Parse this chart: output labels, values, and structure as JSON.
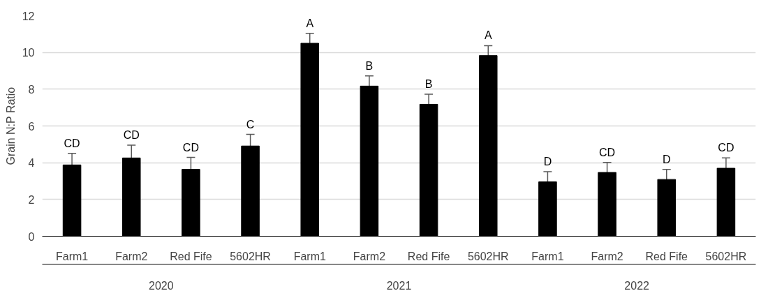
{
  "chart_data": {
    "type": "bar",
    "ylabel": "Grain N:P Ratio",
    "categories": [
      "Farm1",
      "Farm2",
      "Red Fife",
      "5602HR",
      "Farm1",
      "Farm2",
      "Red Fife",
      "5602HR",
      "Farm1",
      "Farm2",
      "Red Fife",
      "5602HR"
    ],
    "values": [
      3.88,
      4.26,
      3.64,
      4.91,
      10.5,
      8.17,
      7.18,
      9.83,
      2.96,
      3.47,
      3.09,
      3.7
    ],
    "errors": [
      0.63,
      0.7,
      0.65,
      0.63,
      0.54,
      0.55,
      0.55,
      0.54,
      0.55,
      0.55,
      0.55,
      0.56
    ],
    "value_labels": [
      "CD",
      "CD",
      "CD",
      "C",
      "A",
      "B",
      "B",
      "A",
      "D",
      "CD",
      "D",
      "CD"
    ],
    "color": "#000000",
    "annotations": [
      "2020",
      "2021",
      "2022"
    ],
    "ylim": [
      0,
      12
    ],
    "yticks": [
      0,
      2,
      4,
      6,
      8,
      10,
      12
    ],
    "grid": "y"
  }
}
